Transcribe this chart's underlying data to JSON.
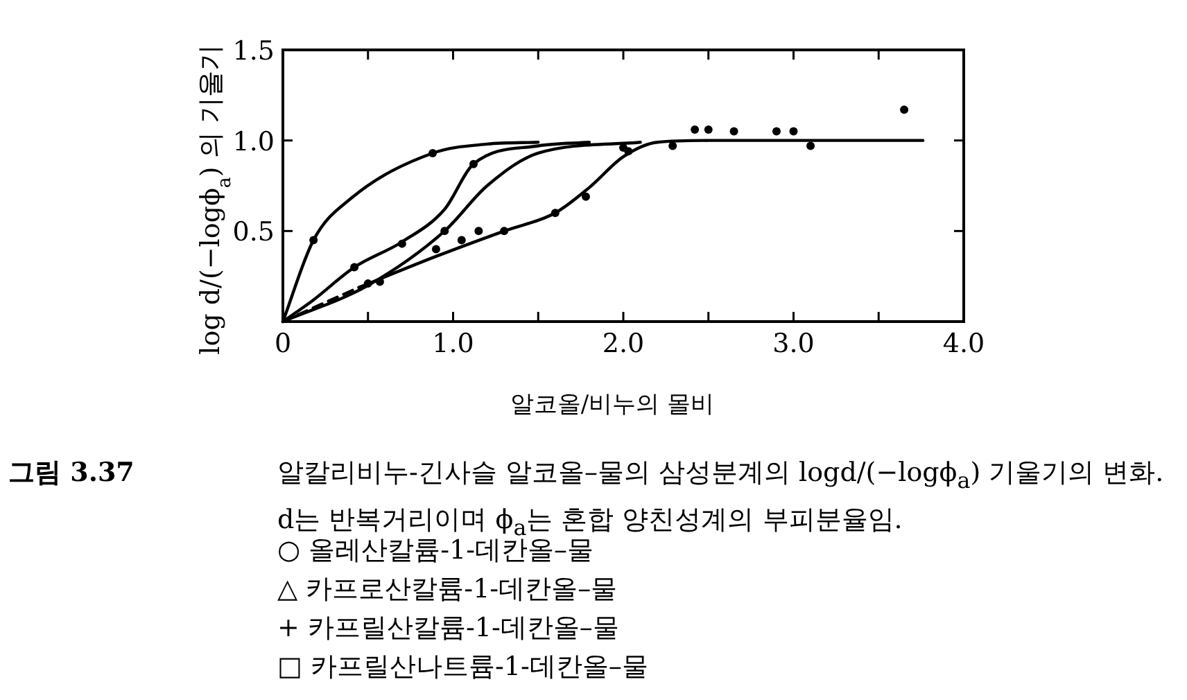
{
  "chart_data": {
    "type": "line",
    "xlabel": "알코올/비누의 몰비",
    "ylabel": "log d/(−logϕ$_{a}$) 의 기울기",
    "xlim": [
      0,
      4
    ],
    "ylim": [
      0,
      1.5
    ],
    "xticks": [
      0,
      {
        "value": 0.5,
        "label": null
      },
      {
        "value": 1,
        "label": "1.0"
      },
      {
        "value": 1.5,
        "label": null
      },
      {
        "value": 2,
        "label": "2.0"
      },
      {
        "value": 2.5,
        "label": null
      },
      {
        "value": 3,
        "label": "3.0"
      },
      {
        "value": 3.5,
        "label": null
      },
      {
        "value": 4,
        "label": "4.0"
      }
    ],
    "yticks": [
      {
        "value": 0.5,
        "label": "0.5"
      },
      {
        "value": 1,
        "label": "1.0"
      },
      {
        "value": 1.5,
        "label": "1.5"
      }
    ],
    "grid": false,
    "series": [
      {
        "color": "#000000",
        "line_style": "solid",
        "marker": "none",
        "x": [
          0,
          0.18,
          0.4,
          0.88,
          1.2,
          1.5
        ],
        "values": [
          0,
          0.45,
          0.68,
          0.93,
          0.98,
          0.99
        ]
      },
      {
        "color": "#000000",
        "line_style": "solid",
        "marker": "none",
        "x": [
          0,
          0.18,
          0.42,
          0.7,
          0.95,
          1.12,
          1.5,
          1.8
        ],
        "values": [
          0,
          0.12,
          0.3,
          0.44,
          0.62,
          0.87,
          0.97,
          0.99
        ]
      },
      {
        "color": "#000000",
        "line_style": "solid",
        "marker": "none",
        "x": [
          0,
          0.5,
          0.95,
          1.2,
          1.5,
          2.1
        ],
        "values": [
          0,
          0.2,
          0.5,
          0.75,
          0.93,
          0.99
        ]
      },
      {
        "color": "#000000",
        "line_style": "dashed",
        "marker": "none",
        "x": [
          0,
          0.45
        ],
        "values": [
          0,
          0.19
        ]
      },
      {
        "color": "#000000",
        "line_style": "solid",
        "marker": "none",
        "x": [
          0.45,
          0.9,
          1.3,
          1.6,
          1.8,
          2.0,
          2.2,
          2.5,
          3.0,
          3.76
        ],
        "values": [
          0.19,
          0.36,
          0.5,
          0.6,
          0.74,
          0.91,
          0.99,
          1.0,
          1.0,
          1.0
        ]
      },
      {
        "type": "scatter",
        "color": "#000000",
        "marker": "circle",
        "x": [
          0.18,
          0.88,
          0.42,
          0.7,
          1.12,
          0.5,
          0.57,
          0.9,
          0.95,
          1.05,
          1.15,
          1.3,
          1.6,
          1.78,
          2.0,
          2.03,
          2.29,
          2.42,
          2.5,
          2.65,
          2.9,
          3.0,
          3.1,
          3.65
        ],
        "values": [
          0.45,
          0.93,
          0.3,
          0.43,
          0.87,
          0.21,
          0.22,
          0.4,
          0.5,
          0.45,
          0.5,
          0.5,
          0.6,
          0.69,
          0.96,
          0.94,
          0.97,
          1.06,
          1.06,
          1.05,
          1.05,
          1.05,
          0.97,
          1.17
        ]
      }
    ],
    "annotations": [
      "그림 3.37",
      "알칼리비누-긴사슬 알코올–물의 삼성분계의 logd/(−logϕ$_{a}$) 기울기의 변화. d는 반복거리이며 ϕ$_{a}$는 혼합 양친성계의 부피분율임.",
      "○ 올레산칼륨-1-데칸올–물",
      "△ 카프로산칼륨-1-데칸올–물",
      "+ 카프릴산칼륨-1-데칸올–물",
      "□ 카프릴산나트륨-1-데칸올–물"
    ]
  }
}
